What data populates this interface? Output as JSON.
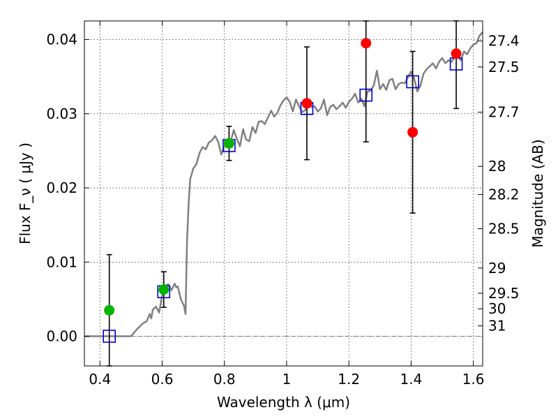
{
  "chart_data": {
    "type": "scatter",
    "title": "",
    "xlabel": "Wavelength  λ (μm)",
    "ylabel": "Flux  F_ν  ( μJy )",
    "ylabel_right": "Magnitude (AB)",
    "xlim": [
      0.35,
      1.63
    ],
    "ylim": [
      -0.004,
      0.0425
    ],
    "grid": true,
    "legend": "none",
    "x_ticks": [
      {
        "value": 0.4,
        "label": "0.4"
      },
      {
        "value": 0.6,
        "label": "0.6"
      },
      {
        "value": 0.8,
        "label": "0.8"
      },
      {
        "value": 1.0,
        "label": "1"
      },
      {
        "value": 1.2,
        "label": "1.2"
      },
      {
        "value": 1.4,
        "label": "1.4"
      },
      {
        "value": 1.6,
        "label": "1.6"
      }
    ],
    "y_ticks": [
      {
        "value": 0.0,
        "label": "0.00"
      },
      {
        "value": 0.01,
        "label": "0.01"
      },
      {
        "value": 0.02,
        "label": "0.02"
      },
      {
        "value": 0.03,
        "label": "0.03"
      },
      {
        "value": 0.04,
        "label": "0.04"
      }
    ],
    "right_ticks": [
      {
        "flux": 0.0398,
        "label": "27.4"
      },
      {
        "flux": 0.0363,
        "label": "27.5"
      },
      {
        "flux": 0.0302,
        "label": "27.7"
      },
      {
        "flux": 0.0229,
        "label": "28"
      },
      {
        "flux": 0.0191,
        "label": "28.2"
      },
      {
        "flux": 0.0145,
        "label": "28.5"
      },
      {
        "flux": 0.0092,
        "label": "29"
      },
      {
        "flux": 0.0058,
        "label": "29.5"
      },
      {
        "flux": 0.0037,
        "label": "30"
      },
      {
        "flux": 0.0014,
        "label": "31"
      }
    ],
    "zero_line": 0.0,
    "colors": {
      "model": "#808080",
      "green": "#00b400",
      "red": "#ff0000",
      "square": "#0000cc",
      "errorbar": "#000000"
    },
    "model_spectrum": {
      "x": [
        0.35,
        0.4,
        0.45,
        0.47,
        0.5,
        0.52,
        0.54,
        0.55,
        0.56,
        0.565,
        0.57,
        0.58,
        0.59,
        0.6,
        0.61,
        0.62,
        0.63,
        0.64,
        0.645,
        0.65,
        0.66,
        0.67,
        0.675,
        0.68,
        0.685,
        0.69,
        0.7,
        0.71,
        0.72,
        0.73,
        0.74,
        0.75,
        0.76,
        0.77,
        0.78,
        0.79,
        0.8,
        0.81,
        0.82,
        0.83,
        0.84,
        0.85,
        0.86,
        0.87,
        0.88,
        0.89,
        0.9,
        0.91,
        0.92,
        0.93,
        0.94,
        0.95,
        0.96,
        0.97,
        0.98,
        0.99,
        1.0,
        1.01,
        1.02,
        1.03,
        1.04,
        1.05,
        1.06,
        1.07,
        1.08,
        1.09,
        1.1,
        1.11,
        1.12,
        1.13,
        1.14,
        1.15,
        1.16,
        1.17,
        1.18,
        1.19,
        1.2,
        1.21,
        1.22,
        1.23,
        1.24,
        1.25,
        1.26,
        1.27,
        1.28,
        1.29,
        1.3,
        1.31,
        1.32,
        1.33,
        1.34,
        1.35,
        1.36,
        1.37,
        1.38,
        1.39,
        1.4,
        1.41,
        1.42,
        1.43,
        1.44,
        1.45,
        1.46,
        1.47,
        1.48,
        1.49,
        1.5,
        1.51,
        1.52,
        1.53,
        1.54,
        1.55,
        1.56,
        1.57,
        1.58,
        1.59,
        1.6,
        1.61,
        1.62,
        1.63
      ],
      "y": [
        0.0,
        0.0,
        0.0,
        0.0,
        0.0,
        0.001,
        0.0018,
        0.002,
        0.003,
        0.0024,
        0.0036,
        0.004,
        0.0032,
        0.0055,
        0.0068,
        0.007,
        0.0062,
        0.0071,
        0.0066,
        0.0067,
        0.005,
        0.0041,
        0.003,
        0.013,
        0.0178,
        0.0212,
        0.0226,
        0.0232,
        0.0247,
        0.0255,
        0.0252,
        0.0261,
        0.0264,
        0.027,
        0.0262,
        0.0245,
        0.0256,
        0.026,
        0.0262,
        0.0278,
        0.0266,
        0.0256,
        0.0279,
        0.0265,
        0.0263,
        0.0282,
        0.0274,
        0.0289,
        0.029,
        0.0286,
        0.0295,
        0.0304,
        0.0296,
        0.0301,
        0.0311,
        0.0318,
        0.0322,
        0.0316,
        0.0303,
        0.0319,
        0.031,
        0.0302,
        0.0305,
        0.0316,
        0.0309,
        0.031,
        0.0303,
        0.0307,
        0.0319,
        0.0298,
        0.0309,
        0.0312,
        0.0306,
        0.031,
        0.0315,
        0.0308,
        0.0316,
        0.032,
        0.0327,
        0.0315,
        0.032,
        0.031,
        0.033,
        0.0331,
        0.0338,
        0.0358,
        0.0333,
        0.034,
        0.0332,
        0.0345,
        0.0347,
        0.0333,
        0.034,
        0.0342,
        0.0341,
        0.0349,
        0.0357,
        0.0347,
        0.033,
        0.0338,
        0.0354,
        0.036,
        0.0364,
        0.0368,
        0.0361,
        0.037,
        0.0375,
        0.0368,
        0.0372,
        0.037,
        0.0376,
        0.0378,
        0.0372,
        0.0384,
        0.038,
        0.0388,
        0.0393,
        0.0395,
        0.0405,
        0.041
      ]
    },
    "series": [
      {
        "marker": "circle",
        "color": "green",
        "points": [
          {
            "x": 0.43,
            "y": 0.0035,
            "err_low": null,
            "err_high": null
          },
          {
            "x": 0.605,
            "y": 0.0063,
            "err_low": 0.0039,
            "err_high": 0.0087
          },
          {
            "x": 0.815,
            "y": 0.026,
            "err_low": 0.0237,
            "err_high": 0.0283
          }
        ]
      },
      {
        "marker": "circle",
        "color": "red",
        "points": [
          {
            "x": 1.065,
            "y": 0.0314,
            "err_low": 0.0238,
            "err_high": 0.039
          },
          {
            "x": 1.255,
            "y": 0.0395,
            "err_low": 0.0262,
            "err_high": 0.0425
          },
          {
            "x": 1.405,
            "y": 0.0275,
            "err_low": 0.0166,
            "err_high": 0.0384
          },
          {
            "x": 1.545,
            "y": 0.0381,
            "err_low": 0.0307,
            "err_high": 0.0425
          }
        ]
      },
      {
        "marker": "square",
        "color": "square",
        "points": [
          {
            "x": 0.43,
            "y": 0.0,
            "err_low": -0.004,
            "err_high": 0.011
          },
          {
            "x": 0.605,
            "y": 0.006
          },
          {
            "x": 0.815,
            "y": 0.0257
          },
          {
            "x": 1.065,
            "y": 0.0307
          },
          {
            "x": 1.255,
            "y": 0.0325
          },
          {
            "x": 1.405,
            "y": 0.0343
          },
          {
            "x": 1.545,
            "y": 0.0367
          }
        ]
      }
    ]
  }
}
